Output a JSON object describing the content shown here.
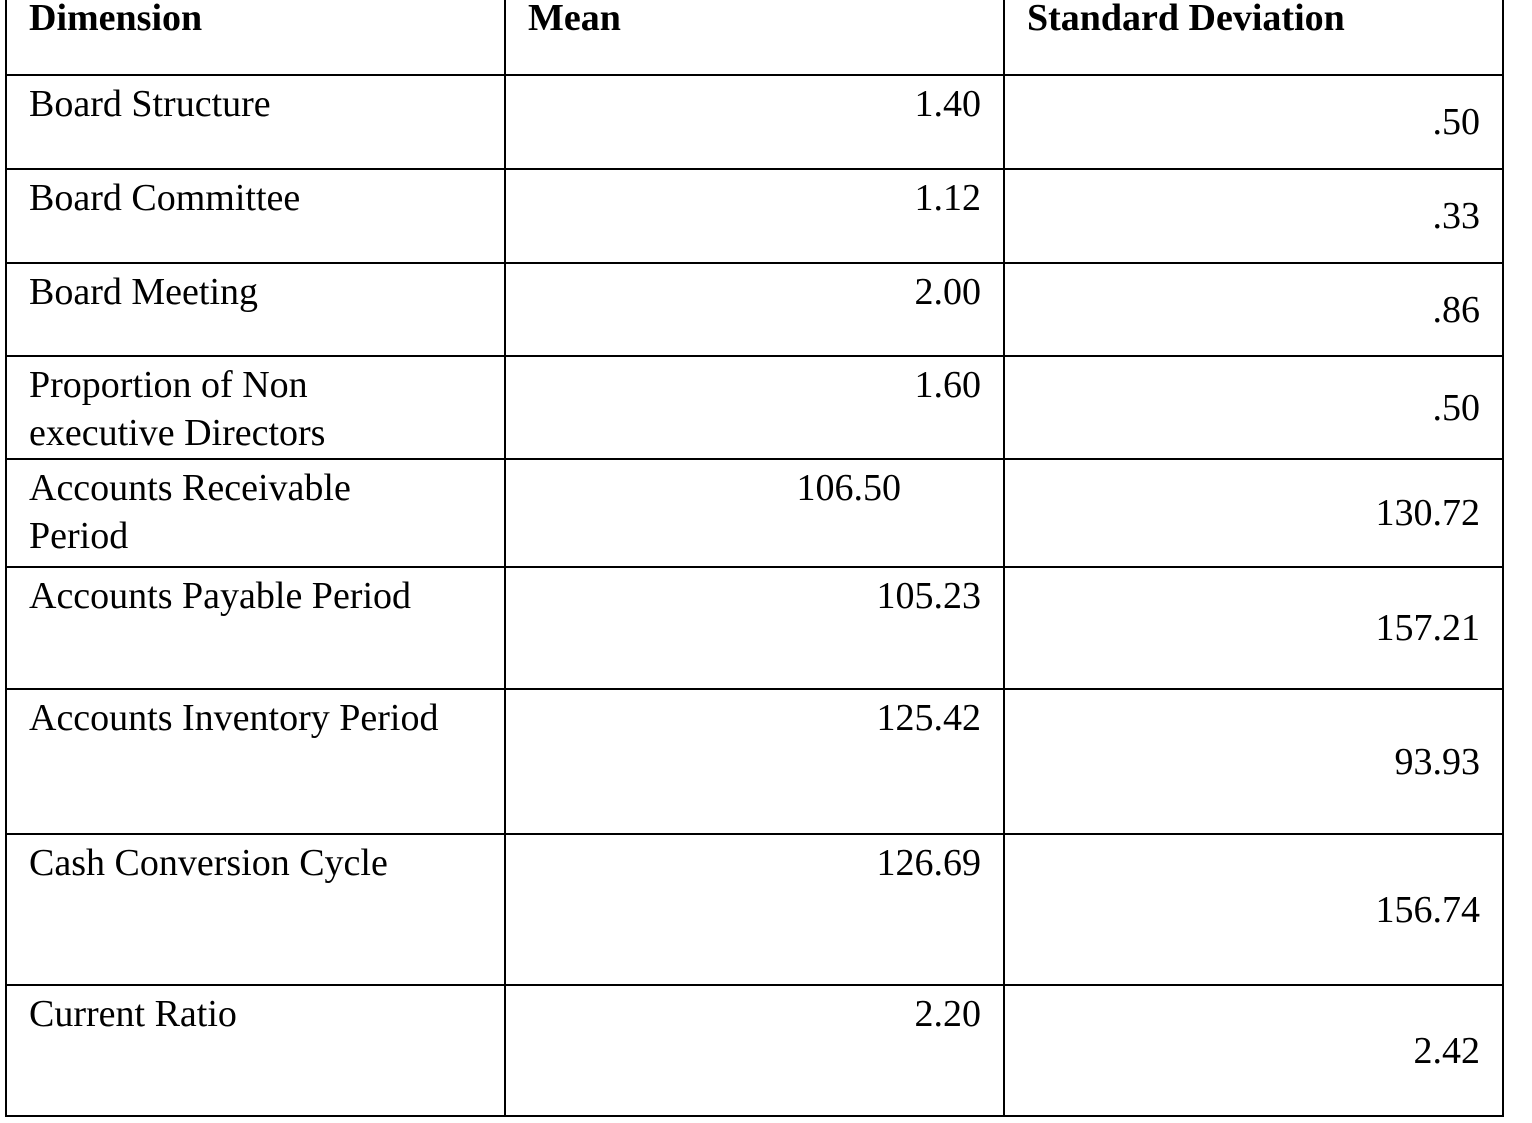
{
  "table": {
    "header": [
      "Dimension",
      "Mean",
      "Standard Deviation"
    ],
    "rows": [
      [
        "Board Structure",
        "1.40",
        ".50"
      ],
      [
        "Board Committee",
        "1.12",
        ".33"
      ],
      [
        "Board Meeting",
        "2.00",
        ".86"
      ],
      [
        "Proportion of Non\nexecutive Directors",
        "1.60",
        ".50"
      ],
      [
        "Accounts Receivable\nPeriod",
        "106.50",
        "130.72"
      ],
      [
        "Accounts Payable Period",
        "105.23",
        "157.21"
      ],
      [
        "Accounts Inventory Period",
        "125.42",
        "93.93"
      ],
      [
        "Cash Conversion Cycle",
        "126.69",
        "156.74"
      ],
      [
        "Current Ratio",
        "2.20",
        "2.42"
      ]
    ]
  }
}
